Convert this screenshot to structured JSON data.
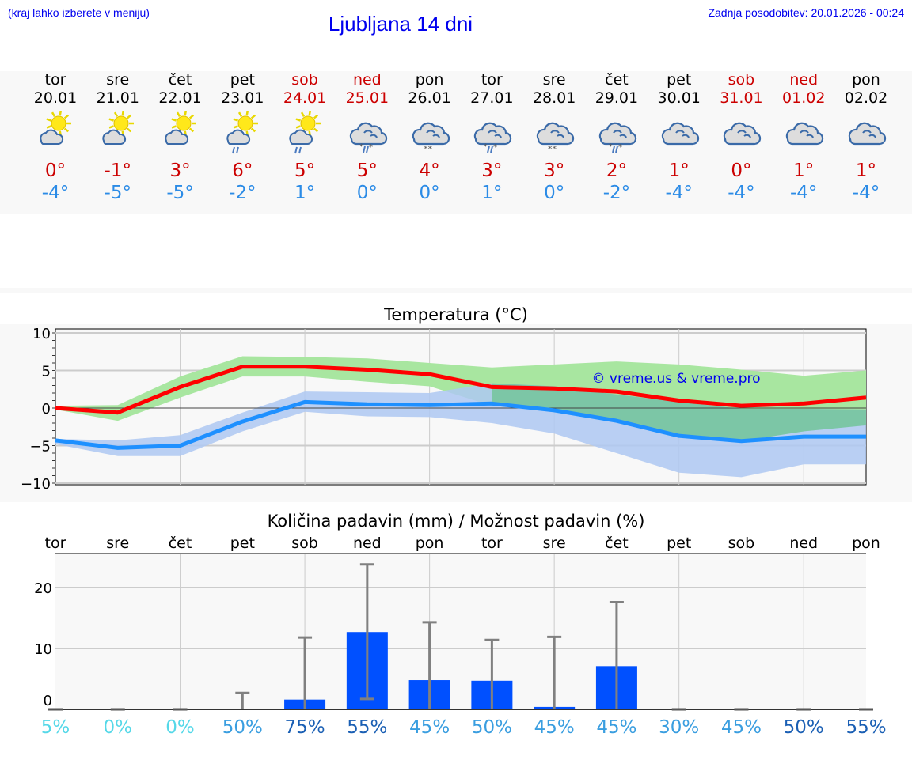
{
  "header": {
    "hint": "(kraj lahko izberete v meniju)",
    "title": "Ljubljana 14 dni",
    "updated": "Zadnja posodobitev: 20.01.2026 - 00:24"
  },
  "colors": {
    "max": "#cc0000",
    "min": "#2b8be6",
    "weekend": "#cc0000",
    "bar": "#0050ff",
    "max_band": "#a8e6a0",
    "min_band": "#aec8f2",
    "overlap": "#7cc6a6"
  },
  "days": [
    {
      "name": "tor",
      "date": "20.01",
      "weekend": false,
      "icon": "sun-cloud-icon",
      "max": "0°",
      "min": "-4°"
    },
    {
      "name": "sre",
      "date": "21.01",
      "weekend": false,
      "icon": "sun-cloud-icon",
      "max": "-1°",
      "min": "-5°"
    },
    {
      "name": "čet",
      "date": "22.01",
      "weekend": false,
      "icon": "sun-cloud-icon",
      "max": "3°",
      "min": "-5°"
    },
    {
      "name": "pet",
      "date": "23.01",
      "weekend": false,
      "icon": "sun-cloud-rain-icon",
      "max": "6°",
      "min": "-2°"
    },
    {
      "name": "sob",
      "date": "24.01",
      "weekend": true,
      "icon": "sun-cloud-rain-icon",
      "max": "5°",
      "min": "1°"
    },
    {
      "name": "ned",
      "date": "25.01",
      "weekend": true,
      "icon": "cloud-sleet-icon",
      "max": "5°",
      "min": "0°"
    },
    {
      "name": "pon",
      "date": "26.01",
      "weekend": false,
      "icon": "cloud-snow-icon",
      "max": "4°",
      "min": "0°"
    },
    {
      "name": "tor",
      "date": "27.01",
      "weekend": false,
      "icon": "cloud-sleet-icon",
      "max": "3°",
      "min": "1°"
    },
    {
      "name": "sre",
      "date": "28.01",
      "weekend": false,
      "icon": "cloud-snow-icon",
      "max": "3°",
      "min": "0°"
    },
    {
      "name": "čet",
      "date": "29.01",
      "weekend": false,
      "icon": "cloud-sleet-icon",
      "max": "2°",
      "min": "-2°"
    },
    {
      "name": "pet",
      "date": "30.01",
      "weekend": false,
      "icon": "cloud-icon",
      "max": "1°",
      "min": "-4°"
    },
    {
      "name": "sob",
      "date": "31.01",
      "weekend": true,
      "icon": "cloud-icon",
      "max": "0°",
      "min": "-4°"
    },
    {
      "name": "ned",
      "date": "01.02",
      "weekend": true,
      "icon": "cloud-icon",
      "max": "1°",
      "min": "-4°"
    },
    {
      "name": "pon",
      "date": "02.02",
      "weekend": false,
      "icon": "cloud-icon",
      "max": "1°",
      "min": "-4°"
    }
  ],
  "chart_data": [
    {
      "type": "line",
      "title": "Temperatura (°C)",
      "watermark": "© vreme.us & vreme.pro",
      "categories": [
        "tor",
        "sre",
        "čet",
        "pet",
        "sob",
        "ned",
        "pon",
        "tor",
        "sre",
        "čet",
        "pet",
        "sob",
        "ned",
        "pon"
      ],
      "ylim": [
        -10,
        10
      ],
      "yticks": [
        10,
        5,
        0,
        -5,
        -10
      ],
      "grid": true,
      "series": [
        {
          "color": "#ff0000",
          "values": [
            0,
            -0.6,
            2.8,
            5.5,
            5.5,
            5.1,
            4.5,
            2.8,
            2.6,
            2.2,
            1.0,
            0.3,
            0.6,
            1.4
          ],
          "band_low": [
            -0.2,
            -1.7,
            1.4,
            4.2,
            4.2,
            3.5,
            2.9,
            0.3,
            -0.3,
            -1.7,
            -3.6,
            -4.4,
            -3.1,
            -2.3
          ],
          "band_high": [
            0.3,
            0.4,
            4.2,
            6.9,
            6.8,
            6.6,
            6.0,
            5.4,
            5.8,
            6.2,
            5.8,
            5.1,
            4.3,
            5.0
          ]
        },
        {
          "color": "#1e90ff",
          "values": [
            -4.3,
            -5.3,
            -5.0,
            -1.8,
            0.8,
            0.5,
            0.4,
            0.6,
            -0.3,
            -1.7,
            -3.7,
            -4.4,
            -3.8,
            -3.8
          ],
          "band_low": [
            -4.8,
            -6.4,
            -6.4,
            -3.1,
            -0.5,
            -1.1,
            -1.2,
            -2.0,
            -3.4,
            -6.0,
            -8.6,
            -9.2,
            -7.5,
            -7.5
          ],
          "band_high": [
            -4.1,
            -4.3,
            -3.6,
            -0.6,
            2.2,
            2.1,
            2.0,
            3.3,
            2.9,
            1.8,
            0.8,
            -0.1,
            -0.1,
            -0.2
          ]
        }
      ]
    },
    {
      "type": "bar",
      "title": "Količina padavin (mm) / Možnost padavin (%)",
      "categories": [
        "tor",
        "sre",
        "čet",
        "pet",
        "sob",
        "ned",
        "pon",
        "tor",
        "sre",
        "čet",
        "pet",
        "sob",
        "ned",
        "pon"
      ],
      "ylim": [
        0,
        25.5
      ],
      "yticks": [
        20,
        10,
        0
      ],
      "grid": true,
      "values": [
        0,
        0,
        0,
        0,
        1.6,
        12.7,
        4.8,
        4.7,
        0.4,
        7.1,
        0,
        0,
        0,
        0
      ],
      "err_low": [
        0,
        0,
        0,
        0,
        0,
        1.7,
        0,
        0,
        0,
        0,
        0,
        0,
        0,
        0
      ],
      "err_high": [
        0,
        0,
        0,
        2.7,
        11.8,
        23.8,
        14.3,
        11.4,
        11.9,
        17.6,
        0,
        0,
        0,
        0
      ],
      "probability": [
        {
          "label": "5%",
          "color": "#55d8e8"
        },
        {
          "label": "0%",
          "color": "#55d8e8"
        },
        {
          "label": "0%",
          "color": "#55d8e8"
        },
        {
          "label": "50%",
          "color": "#3a9ee0"
        },
        {
          "label": "75%",
          "color": "#1a5fb4"
        },
        {
          "label": "55%",
          "color": "#1a5fb4"
        },
        {
          "label": "45%",
          "color": "#3a9ee0"
        },
        {
          "label": "50%",
          "color": "#3a9ee0"
        },
        {
          "label": "45%",
          "color": "#3a9ee0"
        },
        {
          "label": "45%",
          "color": "#3a9ee0"
        },
        {
          "label": "30%",
          "color": "#3a9ee0"
        },
        {
          "label": "45%",
          "color": "#3a9ee0"
        },
        {
          "label": "50%",
          "color": "#1a5fb4"
        },
        {
          "label": "55%",
          "color": "#1a5fb4"
        }
      ]
    }
  ]
}
